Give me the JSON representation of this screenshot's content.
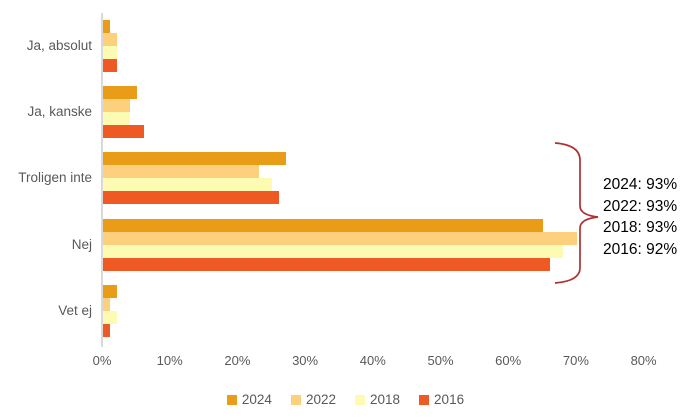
{
  "chart_data": {
    "type": "bar",
    "orientation": "horizontal",
    "title": "",
    "xlabel": "",
    "ylabel": "",
    "categories": [
      "Ja, absolut",
      "Ja, kanske",
      "Troligen inte",
      "Nej",
      "Vet ej"
    ],
    "series": [
      {
        "name": "2024",
        "color": "#E89C18",
        "values": [
          1,
          5,
          27,
          65,
          2
        ]
      },
      {
        "name": "2022",
        "color": "#FCD07D",
        "values": [
          2,
          4,
          23,
          70,
          1
        ]
      },
      {
        "name": "2018",
        "color": "#FDFBB2",
        "values": [
          2,
          4,
          25,
          68,
          2
        ]
      },
      {
        "name": "2016",
        "color": "#EF5A24",
        "values": [
          2,
          6,
          26,
          66,
          1
        ]
      }
    ],
    "x_ticks": [
      "0%",
      "10%",
      "20%",
      "30%",
      "40%",
      "50%",
      "60%",
      "70%",
      "80%"
    ],
    "xlim": [
      0,
      80
    ],
    "grid": false,
    "legend_position": "bottom",
    "annotation": {
      "lines": [
        "2024: 93%",
        "2022: 93%",
        "2018: 93%",
        "2016: 92%"
      ],
      "applies_to_categories": [
        "Troligen inte",
        "Nej"
      ],
      "brace_color": "#AC3235",
      "text_color": "#000000"
    },
    "style": {
      "axis_line_color": "#D9D9D9",
      "label_text_color": "#595959"
    }
  }
}
